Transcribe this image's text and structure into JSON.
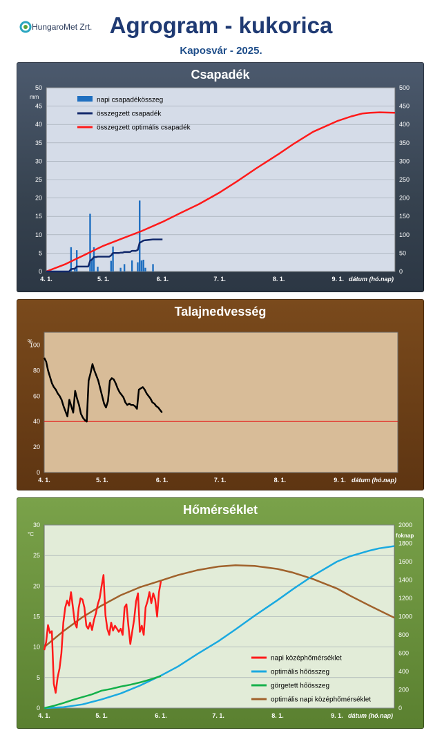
{
  "header": {
    "logo_text": "HungaroMet Zrt.",
    "title": "Agrogram - kukorica",
    "subtitle": "Kaposvár  - 2025."
  },
  "x_axis": {
    "tick_labels": [
      "4. 1.",
      "5. 1.",
      "6. 1.",
      "7. 1.",
      "8. 1.",
      "9. 1."
    ],
    "tick_days": [
      0,
      30,
      61,
      91,
      122,
      153
    ],
    "range_days": [
      0,
      183
    ],
    "label": "dátum (hó.nap)"
  },
  "chart_data": [
    {
      "id": "csapadek",
      "type": "bar",
      "title": "Csapadék",
      "ylabel_left": "mm",
      "ylabel_right": "",
      "ylim_left": [
        0,
        50
      ],
      "ylim_right": [
        0,
        500
      ],
      "yticks_left": [
        0,
        5,
        10,
        15,
        20,
        25,
        30,
        35,
        40,
        45,
        50
      ],
      "yticks_right": [
        0,
        50,
        100,
        150,
        200,
        250,
        300,
        350,
        400,
        450,
        500
      ],
      "grid": true,
      "legend_position": "top-left",
      "colors": {
        "bars": "#1f6fc0",
        "cumulative": "#12296b",
        "optimal": "#ff1a1a",
        "plot_bg": "#d5dce8"
      },
      "series": [
        {
          "name": "napi csapadékösszeg",
          "kind": "bar",
          "axis": "left",
          "x": [
            13,
            15,
            16,
            23,
            24,
            25,
            27,
            34,
            35,
            39,
            41,
            45,
            48,
            49,
            50,
            51,
            52,
            56
          ],
          "values": [
            6.6,
            1.0,
            5.8,
            15.7,
            3.5,
            6.6,
            1.3,
            2.9,
            6.8,
            1.0,
            2.0,
            3.0,
            2.5,
            19.3,
            3.0,
            3.2,
            1.0,
            2.0
          ]
        },
        {
          "name": "összegzett csapadék",
          "kind": "line",
          "axis": "right",
          "x": [
            0,
            12,
            13,
            15,
            16,
            22,
            23,
            24,
            25,
            26,
            27,
            33,
            34,
            35,
            38,
            39,
            40,
            41,
            44,
            45,
            47,
            48,
            49,
            50,
            51,
            52,
            56,
            61
          ],
          "values": [
            0,
            0,
            6.6,
            7.6,
            13.4,
            13.4,
            29.1,
            32.6,
            39.2,
            39.2,
            40.5,
            40.5,
            43.4,
            50.2,
            50.2,
            51.2,
            51.2,
            53.2,
            53.2,
            56.2,
            56.2,
            58.7,
            78.0,
            81.0,
            84.2,
            85.2,
            87.2,
            87.2
          ]
        },
        {
          "name": "összegzett optimális csapadék",
          "kind": "line",
          "axis": "right",
          "x": [
            0,
            10,
            20,
            30,
            40,
            50,
            61,
            70,
            80,
            91,
            100,
            110,
            122,
            130,
            140,
            153,
            160,
            166,
            170,
            175,
            183
          ],
          "values": [
            0,
            20,
            45,
            70,
            90,
            110,
            135,
            158,
            183,
            215,
            245,
            280,
            320,
            348,
            380,
            410,
            422,
            430,
            432,
            433,
            432
          ]
        }
      ]
    },
    {
      "id": "talajnedvesseg",
      "type": "line",
      "title": "Talajnedvesség",
      "ylabel_left": "%",
      "ylim_left": [
        0,
        110
      ],
      "yticks_left": [
        0,
        20,
        40,
        60,
        80,
        100
      ],
      "threshold": 40,
      "grid": false,
      "colors": {
        "line": "#000000",
        "threshold": "#e60000",
        "plot_bg": "#d8bc98"
      },
      "series": [
        {
          "name": "",
          "kind": "line",
          "x": [
            0,
            1,
            2,
            3,
            4,
            5,
            6,
            7,
            8,
            9,
            10,
            11,
            12,
            13,
            14,
            15,
            16,
            17,
            18,
            19,
            20,
            21,
            22,
            23,
            24,
            25,
            26,
            27,
            28,
            29,
            30,
            31,
            32,
            33,
            34,
            35,
            36,
            37,
            38,
            39,
            40,
            41,
            42,
            43,
            44,
            45,
            46,
            47,
            48,
            49,
            50,
            51,
            52,
            53,
            54,
            55,
            56,
            57,
            58,
            59,
            60,
            61
          ],
          "values": [
            90,
            87,
            80,
            75,
            70,
            67,
            65,
            62,
            60,
            57,
            52,
            48,
            44,
            57,
            52,
            47,
            64,
            58,
            53,
            46,
            43,
            41,
            40,
            72,
            78,
            85,
            80,
            76,
            72,
            66,
            60,
            54,
            51,
            56,
            72,
            74,
            73,
            70,
            66,
            63,
            61,
            59,
            55,
            53,
            54,
            53,
            53,
            52,
            50,
            65,
            66,
            67,
            65,
            62,
            60,
            58,
            55,
            54,
            52,
            51,
            49,
            47
          ]
        }
      ]
    },
    {
      "id": "homerseklet",
      "type": "line",
      "title": "Hőmérséklet",
      "ylabel_left": "°C",
      "ylabel_right": "foknap",
      "ylim_left": [
        0,
        30
      ],
      "ylim_right": [
        0,
        2000
      ],
      "yticks_left": [
        0,
        5,
        10,
        15,
        20,
        25,
        30
      ],
      "yticks_right": [
        0,
        200,
        400,
        600,
        800,
        1000,
        1200,
        1400,
        1600,
        1800,
        2000
      ],
      "grid": true,
      "legend_position": "bottom-right",
      "colors": {
        "daily": "#ff1a1a",
        "optimal_sum": "#1aa9e0",
        "rolling_sum": "#14b04a",
        "optimal_mean": "#a0622c",
        "plot_bg": "#e2ecd8"
      },
      "series": [
        {
          "name": "napi középhőmérséklet",
          "kind": "line",
          "axis": "left",
          "x": [
            0,
            1,
            2,
            3,
            4,
            5,
            6,
            7,
            8,
            9,
            10,
            11,
            12,
            13,
            14,
            15,
            16,
            17,
            18,
            19,
            20,
            21,
            22,
            23,
            24,
            25,
            26,
            27,
            28,
            29,
            30,
            31,
            32,
            33,
            34,
            35,
            36,
            37,
            38,
            39,
            40,
            41,
            42,
            43,
            44,
            45,
            46,
            47,
            48,
            49,
            50,
            51,
            52,
            53,
            54,
            55,
            56,
            57,
            58,
            59,
            60,
            61
          ],
          "values": [
            9.5,
            10.8,
            13.6,
            12.3,
            12.6,
            4.0,
            2.5,
            5.0,
            6.5,
            9.0,
            14.0,
            16.5,
            17.6,
            16.8,
            19.0,
            16.5,
            14.0,
            13.2,
            16.4,
            18.0,
            17.8,
            16.5,
            13.5,
            13.0,
            14.0,
            12.8,
            14.4,
            15.5,
            17.0,
            18.0,
            20.0,
            21.8,
            15.2,
            13.0,
            12.0,
            14.0,
            12.7,
            13.5,
            13.0,
            12.5,
            13.0,
            12.0,
            16.5,
            17.0,
            13.5,
            10.5,
            12.5,
            14.5,
            17.5,
            18.8,
            12.5,
            13.5,
            12.0,
            16.5,
            17.5,
            19.0,
            17.2,
            18.8,
            17.8,
            15.0,
            19.0,
            20.8
          ]
        },
        {
          "name": "optimális hőösszeg",
          "kind": "line",
          "axis": "right",
          "x": [
            0,
            10,
            20,
            30,
            40,
            50,
            61,
            70,
            80,
            91,
            100,
            110,
            122,
            130,
            140,
            153,
            160,
            170,
            175,
            183
          ],
          "values": [
            0,
            10,
            40,
            95,
            160,
            245,
            355,
            455,
            590,
            730,
            860,
            1010,
            1180,
            1300,
            1440,
            1600,
            1660,
            1720,
            1745,
            1770
          ]
        },
        {
          "name": "görgetett hőösszeg",
          "kind": "line",
          "axis": "right",
          "x": [
            0,
            5,
            10,
            15,
            20,
            25,
            30,
            35,
            40,
            45,
            50,
            55,
            61
          ],
          "values": [
            0,
            25,
            55,
            90,
            120,
            150,
            190,
            210,
            235,
            255,
            280,
            310,
            350
          ]
        },
        {
          "name": "optimális napi középhőmérséklet",
          "kind": "line",
          "axis": "left",
          "x": [
            0,
            10,
            20,
            30,
            40,
            50,
            61,
            70,
            80,
            91,
            100,
            110,
            122,
            130,
            140,
            153,
            160,
            170,
            183
          ],
          "values": [
            10.0,
            12.6,
            14.9,
            16.8,
            18.5,
            19.8,
            20.9,
            21.8,
            22.6,
            23.2,
            23.4,
            23.3,
            22.8,
            22.2,
            21.2,
            19.6,
            18.4,
            16.8,
            14.8
          ]
        }
      ]
    }
  ]
}
